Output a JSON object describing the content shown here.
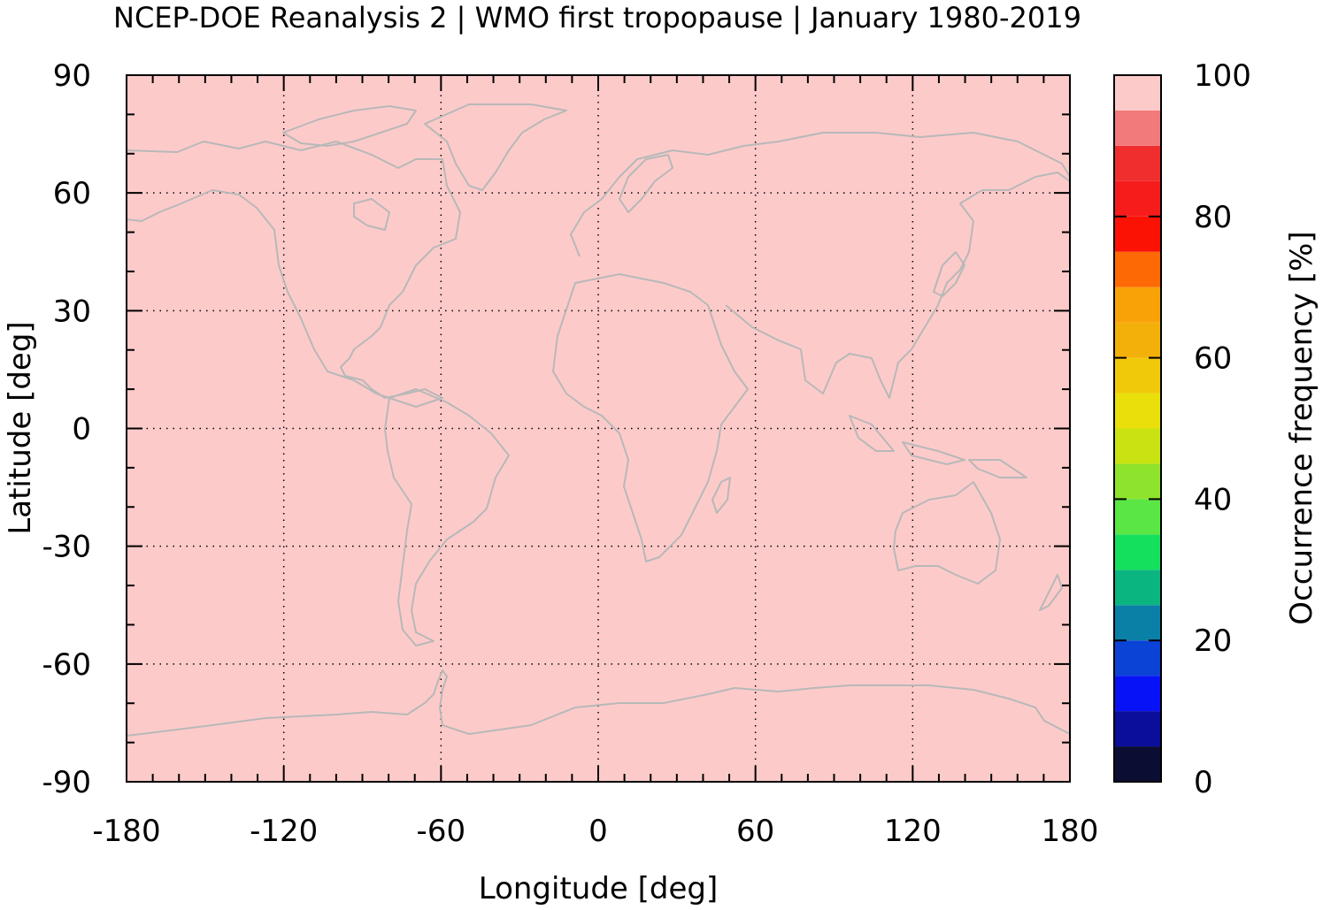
{
  "chart_data": {
    "type": "heatmap",
    "title": "NCEP-DOE Reanalysis 2 | WMO first tropopause | January 1980-2019",
    "xlabel": "Longitude [deg]",
    "ylabel": "Latitude [deg]",
    "xlim": [
      -180,
      180
    ],
    "ylim": [
      -90,
      90
    ],
    "x_ticks": [
      -180,
      -120,
      -60,
      0,
      60,
      120,
      180
    ],
    "x_tick_labels": [
      "-180",
      "-120",
      "-60",
      "0",
      "60",
      "120",
      "180"
    ],
    "y_ticks": [
      90,
      60,
      30,
      0,
      -30,
      -60,
      -90
    ],
    "y_tick_labels": [
      "90",
      "60",
      "30",
      "0",
      "-30",
      "-60",
      "-90"
    ],
    "grid": true,
    "field_value": 100,
    "field_color": "#fdcaca",
    "coastline_color": "#b8b8b8",
    "colorbar": {
      "label": "Occurrence frequency [%]",
      "range": [
        0,
        100
      ],
      "ticks": [
        0,
        20,
        40,
        60,
        80,
        100
      ],
      "tick_labels": [
        "0",
        "20",
        "40",
        "60",
        "80",
        "100"
      ],
      "colors": [
        "#0c0d33",
        "#0a0e9a",
        "#0812f7",
        "#0a43d6",
        "#0a80a6",
        "#0ab580",
        "#14e05c",
        "#5ae645",
        "#8ee32c",
        "#c9e312",
        "#e9df0a",
        "#f0c90a",
        "#f4b00a",
        "#f8a208",
        "#fd6a05",
        "#fb1205",
        "#f71c1c",
        "#f02e2e",
        "#f27a7a",
        "#fdcaca"
      ]
    }
  }
}
